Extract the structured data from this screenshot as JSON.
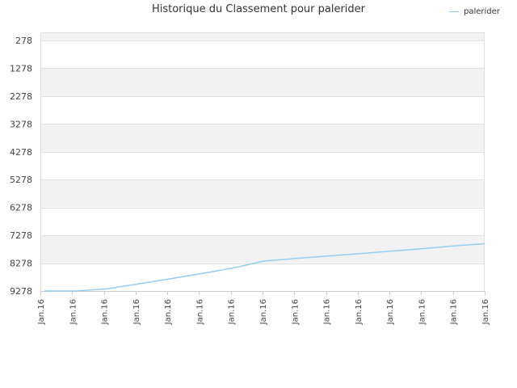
{
  "chart_data": {
    "type": "line",
    "title": "Historique du Classement pour palerider",
    "xlabel": "",
    "ylabel": "",
    "ylim": [
      9278,
      278
    ],
    "y_inverted": true,
    "y_ticks": [
      "278",
      "1278",
      "2278",
      "3278",
      "4278",
      "5278",
      "6278",
      "7278",
      "8278",
      "9278"
    ],
    "x_tick_labels": [
      "Jan.16",
      "Jan.16",
      "Jan.16",
      "Jan.16",
      "Jan.16",
      "Jan.16",
      "Jan.16",
      "Jan.16",
      "Jan.16",
      "Jan.16",
      "Jan.16",
      "Jan.16",
      "Jan.16",
      "Jan.16",
      "Jan.16"
    ],
    "grid": true,
    "legend_position": "top-right",
    "series": [
      {
        "name": "palerider",
        "color": "#99ccee",
        "x": [
          0,
          1,
          2,
          3,
          4,
          5,
          6,
          7,
          8,
          9,
          10,
          11,
          12,
          13,
          14
        ],
        "values": [
          9278,
          9278,
          9200,
          9020,
          8840,
          8650,
          8450,
          8200,
          8110,
          8020,
          7940,
          7850,
          7760,
          7660,
          7580
        ]
      }
    ]
  }
}
